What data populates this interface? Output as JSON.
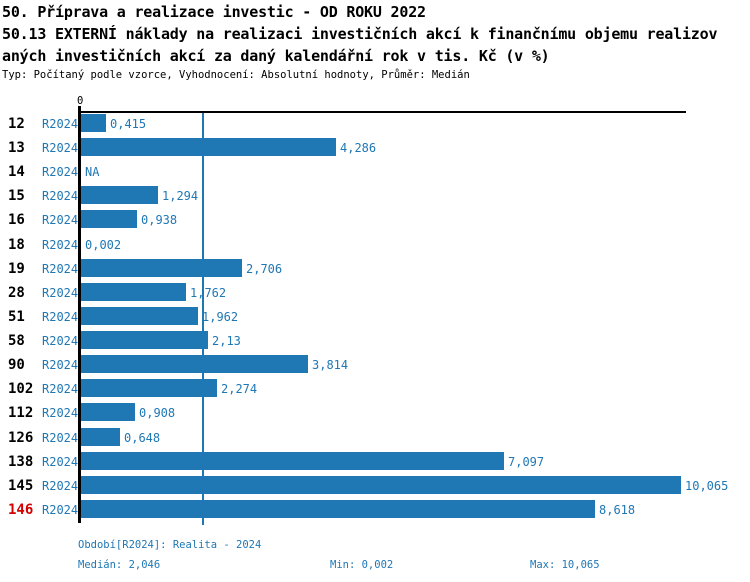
{
  "header": {
    "title_line1": "50. Příprava a realizace investic - OD ROKU 2022",
    "title_line2": "50.13 EXTERNÍ náklady na realizaci investičních akcí k finančnímu objemu realizov",
    "title_line3": "aných investičních akcí za daný kalendářní rok v tis. Kč (v %)",
    "meta": "Typ: Počítaný podle vzorce, Vyhodnocení: Absolutní hodnoty, Průměr: Medián"
  },
  "colors": {
    "bar": "#1f77b4",
    "blue_text": "#1f77b4",
    "median_line": "#1f77b4",
    "highlight_red": "#d40000",
    "axis": "#000000"
  },
  "chart_data": {
    "type": "bar",
    "orientation": "horizontal",
    "title": "50.13 EXTERNÍ náklady na realizaci investičních akcí k finančnímu objemu realizovaných investičních akcí za daný kalendářní rok v tis. Kč (v %)",
    "xlabel": "",
    "ylabel": "",
    "xlim": [
      0,
      10.17
    ],
    "zero_tick_label": "0",
    "median_value": 2.046,
    "grid": false,
    "legend_position": "none",
    "categories": [
      "12",
      "13",
      "14",
      "15",
      "16",
      "18",
      "19",
      "28",
      "51",
      "58",
      "90",
      "102",
      "112",
      "126",
      "138",
      "145",
      "146"
    ],
    "rows": [
      {
        "id": "12",
        "period": "R2024",
        "value": 0.415,
        "label": "0,415",
        "highlight": false
      },
      {
        "id": "13",
        "period": "R2024",
        "value": 4.286,
        "label": "4,286",
        "highlight": false
      },
      {
        "id": "14",
        "period": "R2024",
        "value": null,
        "label": "NA",
        "highlight": false
      },
      {
        "id": "15",
        "period": "R2024",
        "value": 1.294,
        "label": "1,294",
        "highlight": false
      },
      {
        "id": "16",
        "period": "R2024",
        "value": 0.938,
        "label": "0,938",
        "highlight": false
      },
      {
        "id": "18",
        "period": "R2024",
        "value": 0.002,
        "label": "0,002",
        "highlight": false
      },
      {
        "id": "19",
        "period": "R2024",
        "value": 2.706,
        "label": "2,706",
        "highlight": false
      },
      {
        "id": "28",
        "period": "R2024",
        "value": 1.762,
        "label": "1,762",
        "highlight": false
      },
      {
        "id": "51",
        "period": "R2024",
        "value": 1.962,
        "label": "1,962",
        "highlight": false
      },
      {
        "id": "58",
        "period": "R2024",
        "value": 2.13,
        "label": "2,13",
        "highlight": false
      },
      {
        "id": "90",
        "period": "R2024",
        "value": 3.814,
        "label": "3,814",
        "highlight": false
      },
      {
        "id": "102",
        "period": "R2024",
        "value": 2.274,
        "label": "2,274",
        "highlight": false
      },
      {
        "id": "112",
        "period": "R2024",
        "value": 0.908,
        "label": "0,908",
        "highlight": false
      },
      {
        "id": "126",
        "period": "R2024",
        "value": 0.648,
        "label": "0,648",
        "highlight": false
      },
      {
        "id": "138",
        "period": "R2024",
        "value": 7.097,
        "label": "7,097",
        "highlight": false
      },
      {
        "id": "145",
        "period": "R2024",
        "value": 10.065,
        "label": "10,065",
        "highlight": false
      },
      {
        "id": "146",
        "period": "R2024",
        "value": 8.618,
        "label": "8,618",
        "highlight": true
      }
    ]
  },
  "footer": {
    "period_info": "Období[R2024]: Realita - 2024",
    "median": "Medián: 2,046",
    "min": "Min: 0,002",
    "max": "Max: 10,065"
  }
}
